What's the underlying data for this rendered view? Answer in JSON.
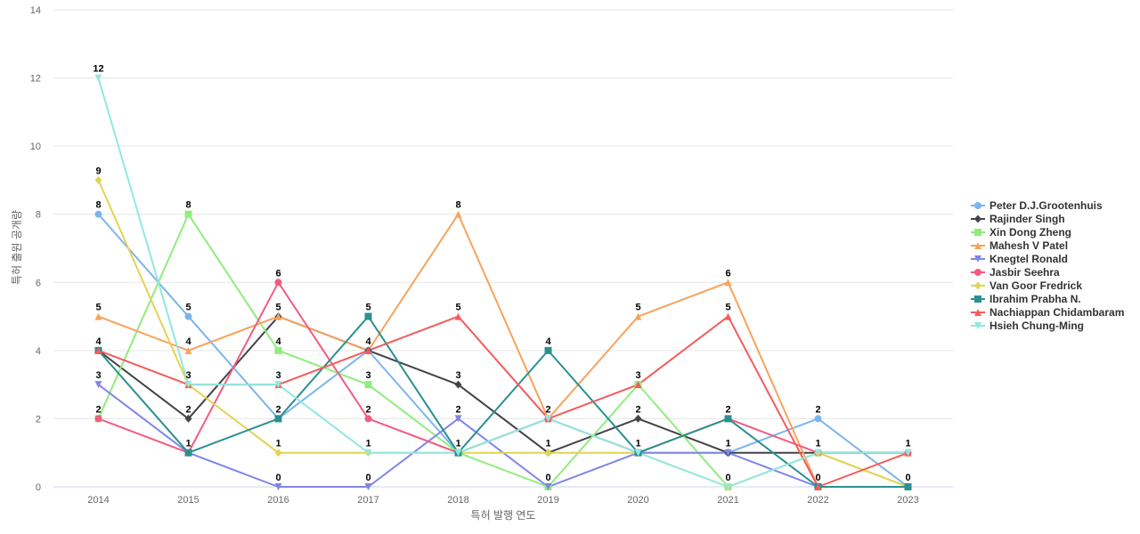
{
  "chart_data": {
    "type": "line",
    "title": "",
    "xlabel": "특허 발행 연도",
    "ylabel": "특허 출원 공개량",
    "x": [
      "2014",
      "2015",
      "2016",
      "2017",
      "2018",
      "2019",
      "2020",
      "2021",
      "2022",
      "2023"
    ],
    "ylim": [
      0,
      14
    ],
    "yticks": [
      0,
      2,
      4,
      6,
      8,
      10,
      12,
      14
    ],
    "grid": "horizontal",
    "legend_position": "right",
    "series": [
      {
        "name": "Peter D.J.Grootenhuis",
        "color": "#7cb5ec",
        "marker": "circle",
        "values": [
          8,
          5,
          2,
          4,
          1,
          2,
          1,
          1,
          2,
          0
        ]
      },
      {
        "name": "Rajinder Singh",
        "color": "#434348",
        "marker": "diamond",
        "values": [
          4,
          2,
          5,
          4,
          3,
          1,
          2,
          1,
          1,
          1
        ]
      },
      {
        "name": "Xin Dong Zheng",
        "color": "#90ed7d",
        "marker": "square",
        "values": [
          2,
          8,
          4,
          3,
          1,
          0,
          3,
          0,
          1,
          0
        ]
      },
      {
        "name": "Mahesh V Patel",
        "color": "#f7a35c",
        "marker": "triangle",
        "values": [
          5,
          4,
          5,
          4,
          8,
          2,
          5,
          6,
          0,
          0
        ]
      },
      {
        "name": "Knegtel Ronald",
        "color": "#8085e9",
        "marker": "triangle-down",
        "values": [
          3,
          1,
          0,
          0,
          2,
          0,
          1,
          1,
          0,
          0
        ]
      },
      {
        "name": "Jasbir Seehra",
        "color": "#f15c80",
        "marker": "circle",
        "values": [
          2,
          1,
          6,
          2,
          1,
          2,
          1,
          2,
          1,
          1
        ]
      },
      {
        "name": "Van Goor Fredrick",
        "color": "#e4d354",
        "marker": "diamond",
        "values": [
          9,
          3,
          1,
          1,
          1,
          1,
          1,
          0,
          1,
          0
        ]
      },
      {
        "name": "Ibrahim Prabha N.",
        "color": "#2b908f",
        "marker": "square",
        "values": [
          4,
          1,
          2,
          5,
          1,
          4,
          1,
          2,
          0,
          0
        ]
      },
      {
        "name": "Nachiappan Chidambaram",
        "color": "#f45b5b",
        "marker": "triangle",
        "values": [
          4,
          3,
          3,
          4,
          5,
          2,
          3,
          5,
          0,
          1
        ]
      },
      {
        "name": "Hsieh Chung-Ming",
        "color": "#91e8e1",
        "marker": "triangle-down",
        "values": [
          12,
          3,
          3,
          1,
          1,
          2,
          1,
          0,
          1,
          1
        ]
      }
    ],
    "data_labels": [
      {
        "x": "2014",
        "value": 12
      },
      {
        "x": "2014",
        "value": 9
      },
      {
        "x": "2014",
        "value": 8
      },
      {
        "x": "2014",
        "value": 5
      },
      {
        "x": "2014",
        "value": 4
      },
      {
        "x": "2014",
        "value": 3
      },
      {
        "x": "2014",
        "value": 2
      },
      {
        "x": "2015",
        "value": 8
      },
      {
        "x": "2015",
        "value": 5
      },
      {
        "x": "2015",
        "value": 4
      },
      {
        "x": "2015",
        "value": 3
      },
      {
        "x": "2015",
        "value": 2
      },
      {
        "x": "2015",
        "value": 1
      },
      {
        "x": "2016",
        "value": 6
      },
      {
        "x": "2016",
        "value": 5
      },
      {
        "x": "2016",
        "value": 4
      },
      {
        "x": "2016",
        "value": 3
      },
      {
        "x": "2016",
        "value": 2
      },
      {
        "x": "2016",
        "value": 1
      },
      {
        "x": "2016",
        "value": 0
      },
      {
        "x": "2017",
        "value": 5
      },
      {
        "x": "2017",
        "value": 4
      },
      {
        "x": "2017",
        "value": 3
      },
      {
        "x": "2017",
        "value": 2
      },
      {
        "x": "2017",
        "value": 1
      },
      {
        "x": "2017",
        "value": 0
      },
      {
        "x": "2018",
        "value": 8
      },
      {
        "x": "2018",
        "value": 5
      },
      {
        "x": "2018",
        "value": 3
      },
      {
        "x": "2018",
        "value": 2
      },
      {
        "x": "2018",
        "value": 1
      },
      {
        "x": "2019",
        "value": 4
      },
      {
        "x": "2019",
        "value": 2
      },
      {
        "x": "2019",
        "value": 1
      },
      {
        "x": "2019",
        "value": 0
      },
      {
        "x": "2020",
        "value": 5
      },
      {
        "x": "2020",
        "value": 3
      },
      {
        "x": "2020",
        "value": 2
      },
      {
        "x": "2020",
        "value": 1
      },
      {
        "x": "2021",
        "value": 6
      },
      {
        "x": "2021",
        "value": 5
      },
      {
        "x": "2021",
        "value": 2
      },
      {
        "x": "2021",
        "value": 1
      },
      {
        "x": "2021",
        "value": 0
      },
      {
        "x": "2022",
        "value": 2
      },
      {
        "x": "2022",
        "value": 1
      },
      {
        "x": "2022",
        "value": 0
      },
      {
        "x": "2023",
        "value": 1
      },
      {
        "x": "2023",
        "value": 0
      }
    ]
  }
}
